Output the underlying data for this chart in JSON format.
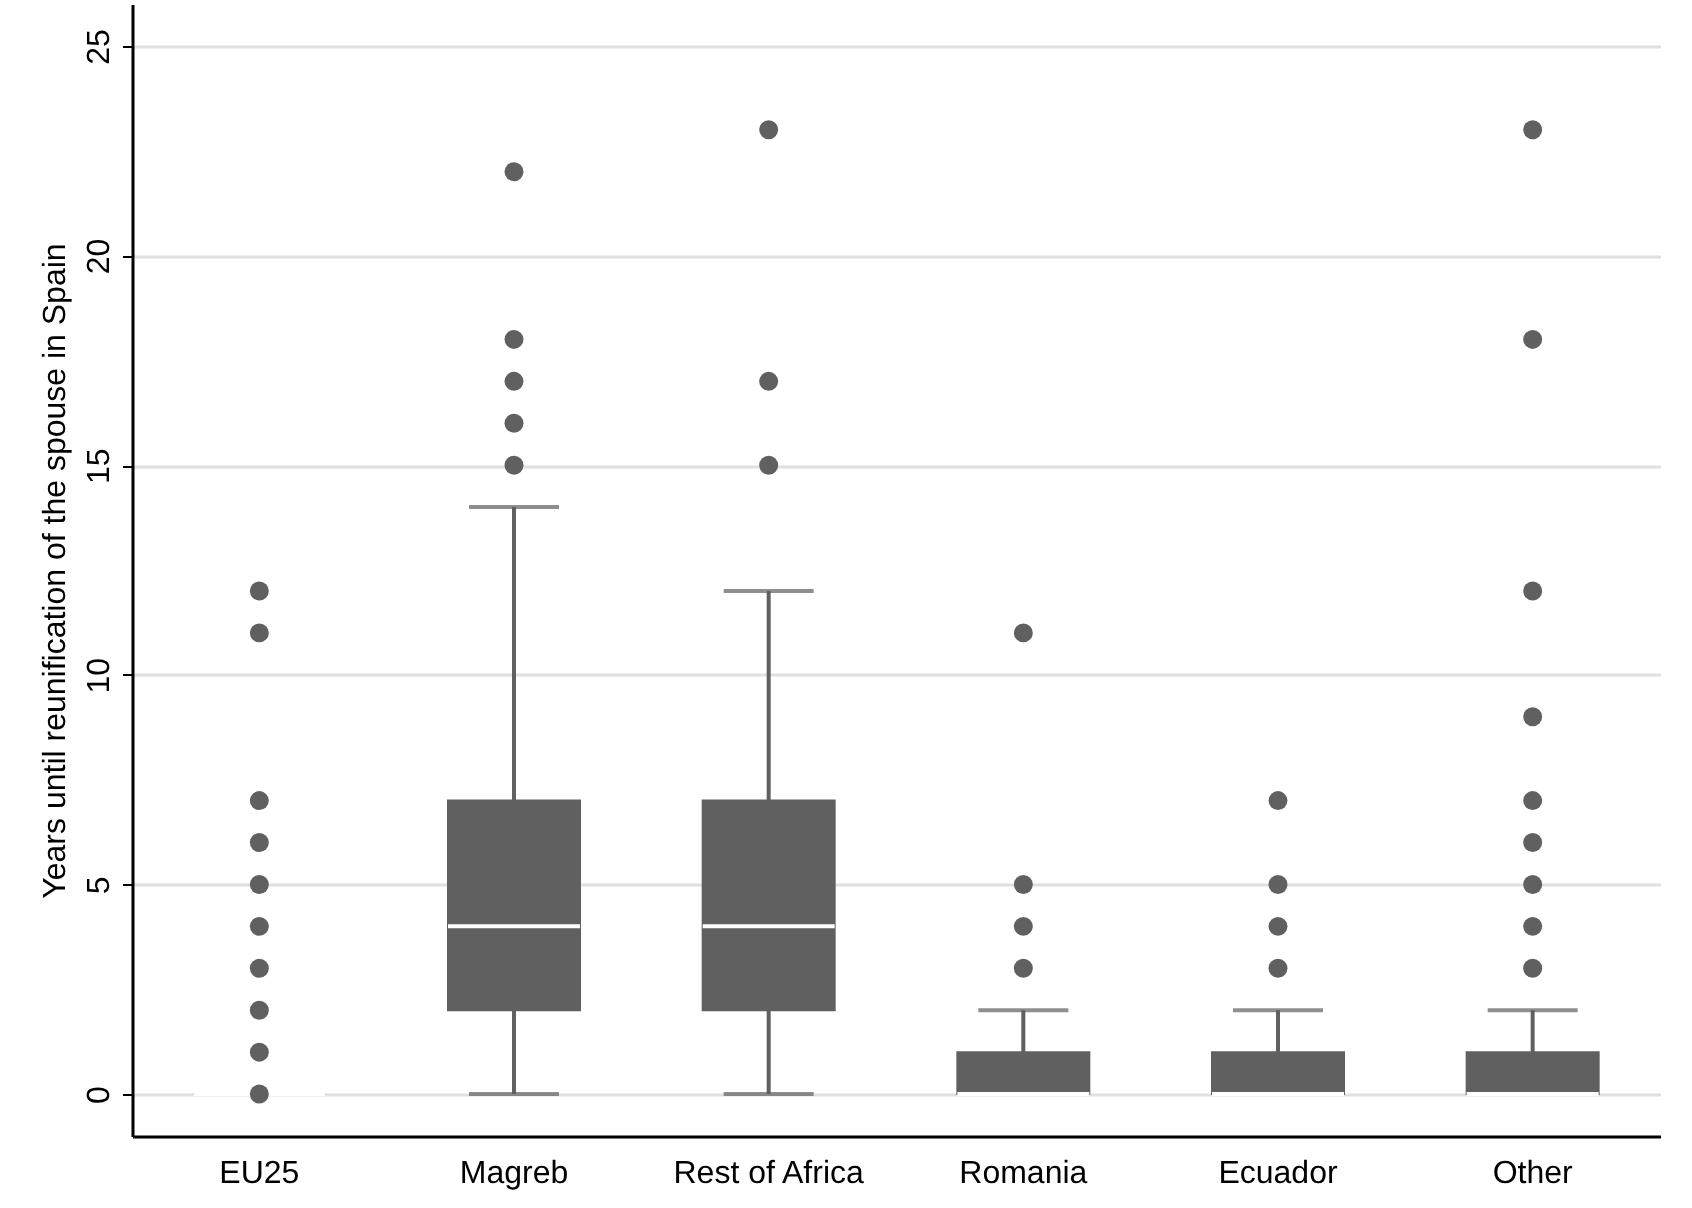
{
  "chart_data": {
    "type": "box",
    "ylabel": "Years until reunification of the spouse in Spain",
    "categories": [
      "EU25",
      "Magreb",
      "Rest of Africa",
      "Romania",
      "Ecuador",
      "Other"
    ],
    "series": [
      {
        "color": "#606060",
        "boxes": [
          {
            "low": 0,
            "q1": 0,
            "median": 0,
            "q3": 0,
            "high": 0,
            "outliers": [
              0,
              1,
              2,
              3,
              4,
              5,
              6,
              7,
              11,
              12
            ]
          },
          {
            "low": 0,
            "q1": 2,
            "median": 4,
            "q3": 7,
            "high": 14,
            "outliers": [
              15,
              16,
              17,
              18,
              22
            ]
          },
          {
            "low": 0,
            "q1": 2,
            "median": 4,
            "q3": 7,
            "high": 12,
            "outliers": [
              15,
              17,
              23
            ]
          },
          {
            "low": 0,
            "q1": 0,
            "median": 0,
            "q3": 1,
            "high": 2,
            "outliers": [
              3,
              4,
              5,
              11
            ]
          },
          {
            "low": 0,
            "q1": 0,
            "median": 0,
            "q3": 1,
            "high": 2,
            "outliers": [
              3,
              4,
              5,
              7
            ]
          },
          {
            "low": 0,
            "q1": 0,
            "median": 0,
            "q3": 1,
            "high": 2,
            "outliers": [
              3,
              4,
              5,
              6,
              7,
              9,
              12,
              18,
              23
            ]
          }
        ]
      }
    ],
    "ylim": [
      -1,
      26
    ],
    "yticks": [
      0,
      5,
      10,
      15,
      20,
      25
    ],
    "grid": "y"
  }
}
